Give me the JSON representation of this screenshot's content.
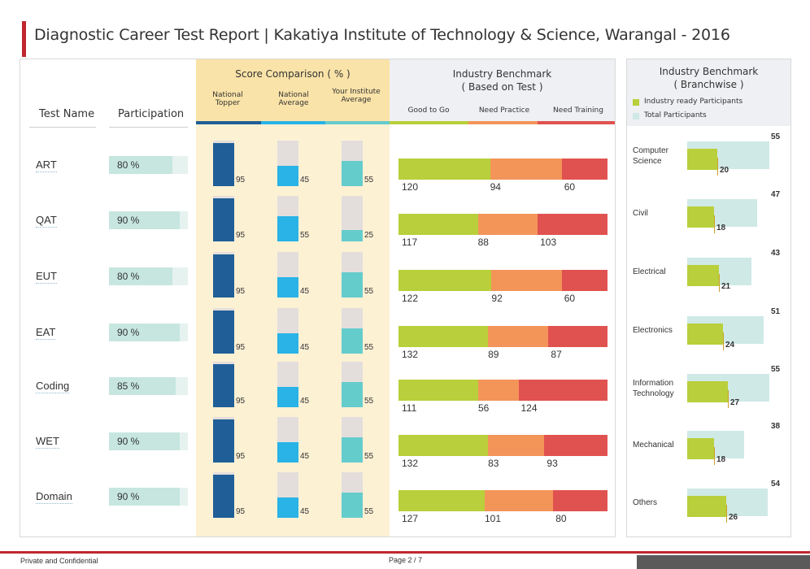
{
  "title": "Diagnostic Career Test Report | Kakatiya Institute of Technology & Science, Warangal - 2016",
  "headers": {
    "test_name": "Test Name",
    "participation": "Participation",
    "score_comparison": "Score Comparison ( % )",
    "national_topper": "National Topper",
    "national_average": "National Average",
    "institute_average": "Your Institute Average",
    "industry_benchmark_line1": "Industry Benchmark",
    "industry_benchmark_line2": "( Based on Test )",
    "good_to_go": "Good to Go",
    "need_practice": "Need Practice",
    "need_training": "Need Training",
    "branch_benchmark_line1": "Industry Benchmark",
    "branch_benchmark_line2": "( Branchwise )",
    "legend_ready": "Industry ready Participants",
    "legend_total": "Total Participants"
  },
  "colors": {
    "brand_red": "#c0272d",
    "national_topper": "#1f5e97",
    "national_average": "#29b3e6",
    "institute_average": "#65cccc",
    "good_to_go": "#b9cf3b",
    "need_practice": "#f39559",
    "need_training": "#e0524f",
    "branch_ready": "#b9cf3b",
    "branch_total": "#cfe9e6"
  },
  "chart_data": [
    {
      "type": "table",
      "title": "Participation",
      "categories": [
        "ART",
        "QAT",
        "EUT",
        "EAT",
        "Coding",
        "WET",
        "Domain"
      ],
      "values": [
        80,
        90,
        80,
        90,
        85,
        90,
        90
      ],
      "labels": [
        "80 %",
        "90 %",
        "80 %",
        "90 %",
        "85 %",
        "90 %",
        "90 %"
      ]
    },
    {
      "type": "bar",
      "title": "Score Comparison ( % )",
      "categories": [
        "ART",
        "QAT",
        "EUT",
        "EAT",
        "Coding",
        "WET",
        "Domain"
      ],
      "series": [
        {
          "name": "National Topper",
          "values": [
            95,
            95,
            95,
            95,
            95,
            95,
            95
          ]
        },
        {
          "name": "National Average",
          "values": [
            45,
            55,
            45,
            45,
            45,
            45,
            45
          ]
        },
        {
          "name": "Your Institute Average",
          "values": [
            55,
            25,
            55,
            55,
            55,
            55,
            55
          ]
        }
      ],
      "ylim": [
        0,
        100
      ]
    },
    {
      "type": "bar",
      "title": "Industry Benchmark ( Based on Test )",
      "categories": [
        "ART",
        "QAT",
        "EUT",
        "EAT",
        "Coding",
        "WET",
        "Domain"
      ],
      "series": [
        {
          "name": "Good to Go",
          "values": [
            120,
            117,
            122,
            132,
            111,
            132,
            127
          ]
        },
        {
          "name": "Need Practice",
          "values": [
            94,
            88,
            92,
            89,
            56,
            83,
            101
          ]
        },
        {
          "name": "Need Training",
          "values": [
            60,
            103,
            60,
            87,
            124,
            93,
            80
          ]
        }
      ]
    },
    {
      "type": "bar",
      "title": "Industry Benchmark ( Branchwise )",
      "categories": [
        "Computer Science",
        "Civil",
        "Electrical",
        "Electronics",
        "Information Technology",
        "Mechanical",
        "Others"
      ],
      "series": [
        {
          "name": "Industry ready Participants",
          "values": [
            20,
            18,
            21,
            24,
            27,
            18,
            26
          ]
        },
        {
          "name": "Total Participants",
          "values": [
            55,
            47,
            43,
            51,
            55,
            38,
            54
          ]
        }
      ]
    }
  ],
  "footer": {
    "left": "Private and Confidential",
    "page": "Page   2 / 7"
  }
}
